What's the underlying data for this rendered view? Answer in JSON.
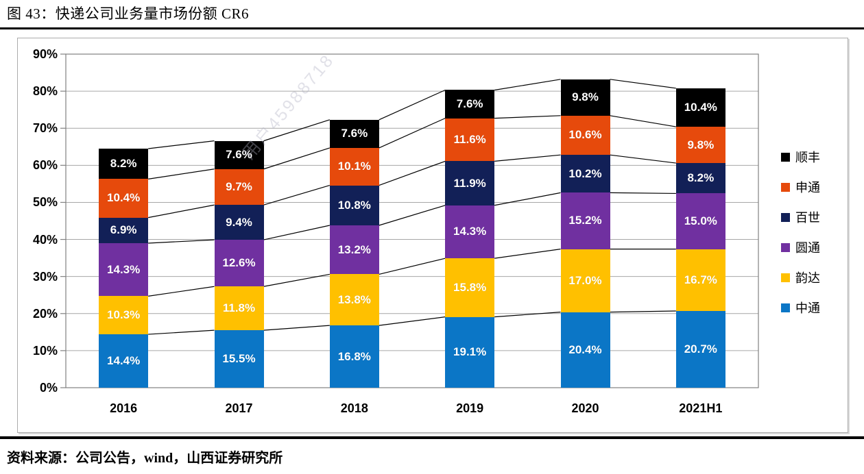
{
  "header": {
    "title": "图 43：快递公司业务量市场份额 CR6"
  },
  "watermark": {
    "text": "用户45988718"
  },
  "footer": {
    "source": "资料来源：公司公告，wind，山西证券研究所"
  },
  "chart_data": {
    "type": "bar",
    "stacked": true,
    "title": "快递公司业务量市场份额 CR6",
    "categories": [
      "2016",
      "2017",
      "2018",
      "2019",
      "2020",
      "2021H1"
    ],
    "series": [
      {
        "name": "中通",
        "color": "#0b76c6",
        "values": [
          14.4,
          15.5,
          16.8,
          19.1,
          20.4,
          20.7
        ]
      },
      {
        "name": "韵达",
        "color": "#ffc000",
        "values": [
          10.3,
          11.8,
          13.8,
          15.8,
          17.0,
          16.7
        ]
      },
      {
        "name": "圆通",
        "color": "#7030a0",
        "values": [
          14.3,
          12.6,
          13.2,
          14.3,
          15.2,
          15.0
        ]
      },
      {
        "name": "百世",
        "color": "#122057",
        "values": [
          6.9,
          9.4,
          10.8,
          11.9,
          10.2,
          8.2
        ]
      },
      {
        "name": "申通",
        "color": "#e64a0c",
        "values": [
          10.4,
          9.7,
          10.1,
          11.6,
          10.6,
          9.8
        ]
      },
      {
        "name": "顺丰",
        "color": "#000000",
        "values": [
          8.2,
          7.6,
          7.6,
          7.6,
          9.8,
          10.4
        ]
      }
    ],
    "label_suffix": "%",
    "label_decimals": 1,
    "ylim": [
      0,
      90
    ],
    "y_tick_step": 10,
    "y_tick_suffix": "%",
    "grid": true,
    "connector_lines": true,
    "legend_position": "right",
    "legend_order_top_to_bottom": [
      "顺丰",
      "申通",
      "百世",
      "圆通",
      "韵达",
      "中通"
    ],
    "colors": {
      "gridline": "#a6a6a6",
      "plot_border": "#808080",
      "connector": "#000000",
      "label_text": "#ffffff",
      "axis_text": "#000000"
    }
  }
}
